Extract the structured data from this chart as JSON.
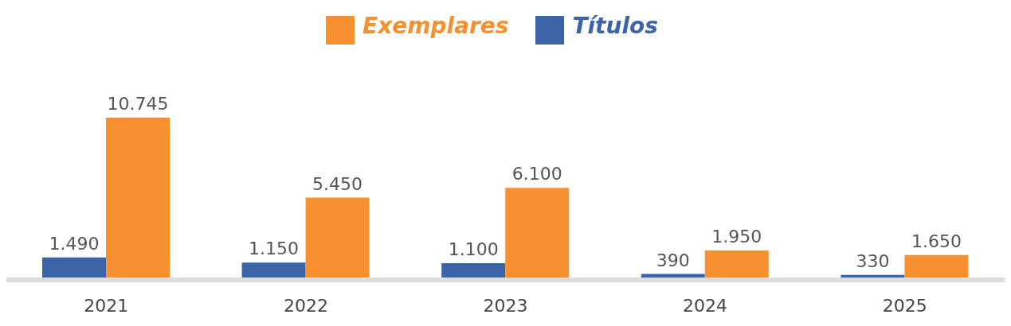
{
  "chart_data": {
    "type": "bar",
    "categories": [
      "2021",
      "2022",
      "2023",
      "2024",
      "2025"
    ],
    "series": [
      {
        "name": "Títulos",
        "color": "#3b64a8",
        "values": [
          1490,
          1150,
          1100,
          390,
          330
        ],
        "value_labels": [
          "1.490",
          "1.150",
          "1.100",
          "390",
          "330"
        ]
      },
      {
        "name": "Exemplares",
        "color": "#f7902f",
        "values": [
          10745,
          5450,
          6100,
          1950,
          1650
        ],
        "value_labels": [
          "10.745",
          "5.450",
          "6.100",
          "1.950",
          "1.650"
        ]
      }
    ],
    "legend": "top",
    "grid": false
  }
}
